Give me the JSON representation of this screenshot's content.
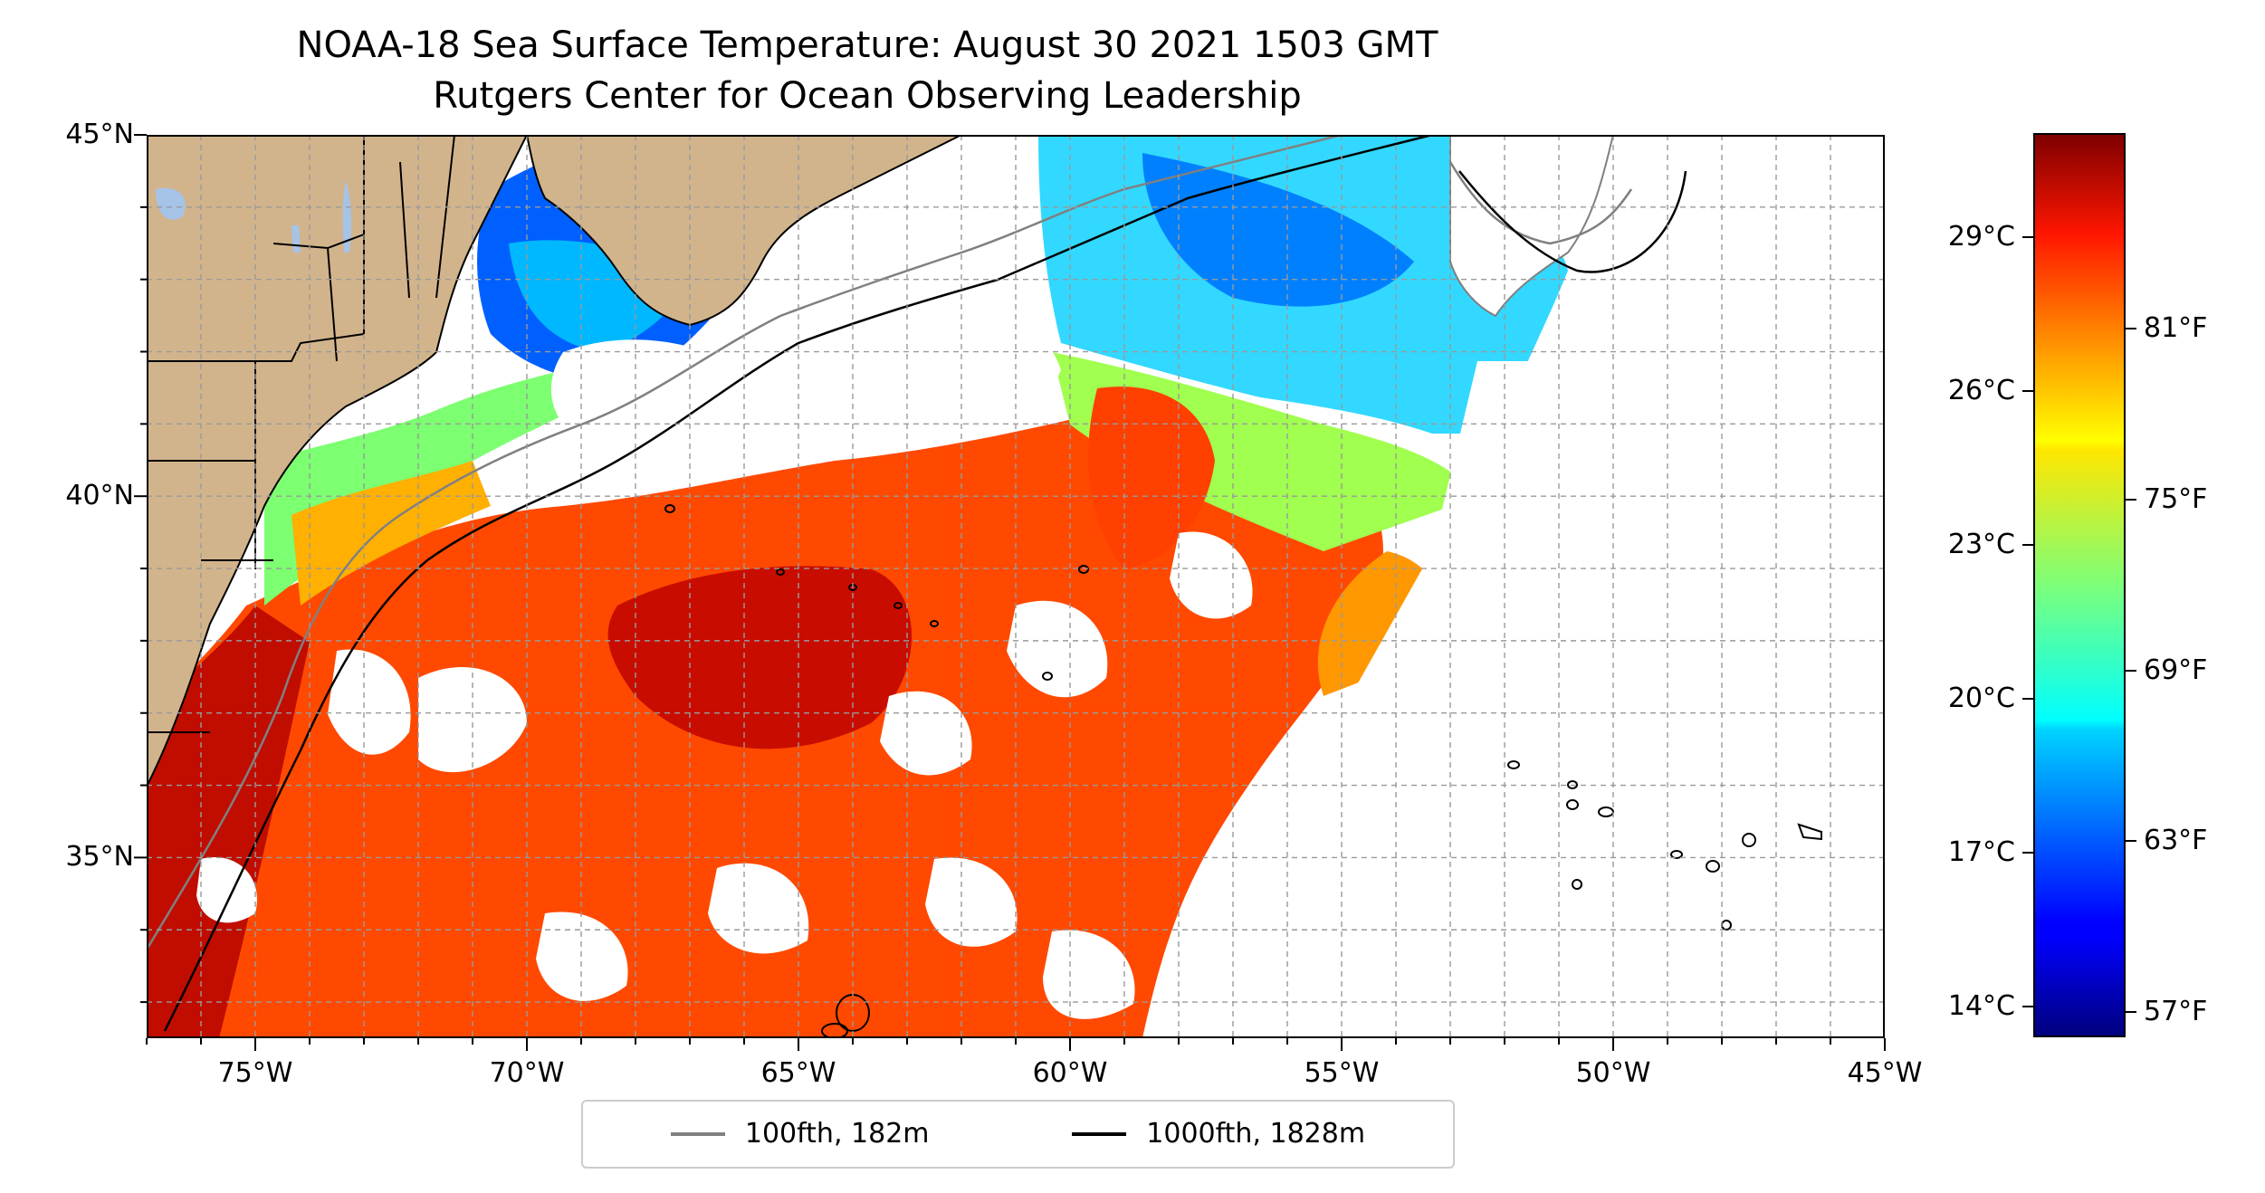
{
  "title_line1": "NOAA-18 Sea Surface Temperature: August 30 2021 1503 GMT",
  "title_line2": "Rutgers Center for Ocean Observing Leadership",
  "map": {
    "extent": {
      "lon_min": -77,
      "lon_max": -45,
      "lat_min": 32.5,
      "lat_max": 45
    },
    "lon_ticks": [
      {
        "value": -75,
        "label": "75°W"
      },
      {
        "value": -70,
        "label": "70°W"
      },
      {
        "value": -65,
        "label": "65°W"
      },
      {
        "value": -60,
        "label": "60°W"
      },
      {
        "value": -55,
        "label": "55°W"
      },
      {
        "value": -50,
        "label": "50°W"
      },
      {
        "value": -45,
        "label": "45°W"
      }
    ],
    "lat_ticks": [
      {
        "value": 45,
        "label": "45°N"
      },
      {
        "value": 40,
        "label": "40°N"
      },
      {
        "value": 35,
        "label": "35°N"
      }
    ],
    "gridlines": "dashed, every 1 degree",
    "colors": {
      "land": "#d2b48c",
      "lakes": "#a6c3e8",
      "bathy_100": "#808080",
      "bathy_1000": "#000000",
      "state_borders": "#000000"
    }
  },
  "legend": {
    "entries": [
      {
        "label": "100fth, 182m",
        "color": "#808080"
      },
      {
        "label": "1000fth, 1828m",
        "color": "#000000"
      }
    ],
    "placement": "bottom-center"
  },
  "colorbar": {
    "colormap": "jet",
    "range_c": [
      13.4,
      31.0
    ],
    "celsius_ticks": [
      {
        "value": 29,
        "label": "29°C"
      },
      {
        "value": 26,
        "label": "26°C"
      },
      {
        "value": 23,
        "label": "23°C"
      },
      {
        "value": 20,
        "label": "20°C"
      },
      {
        "value": 17,
        "label": "17°C"
      },
      {
        "value": 14,
        "label": "14°C"
      }
    ],
    "fahrenheit_ticks": [
      {
        "value": 81,
        "label": "81°F"
      },
      {
        "value": 75,
        "label": "75°F"
      },
      {
        "value": 69,
        "label": "69°F"
      },
      {
        "value": 63,
        "label": "63°F"
      },
      {
        "value": 57,
        "label": "57°F"
      }
    ]
  }
}
